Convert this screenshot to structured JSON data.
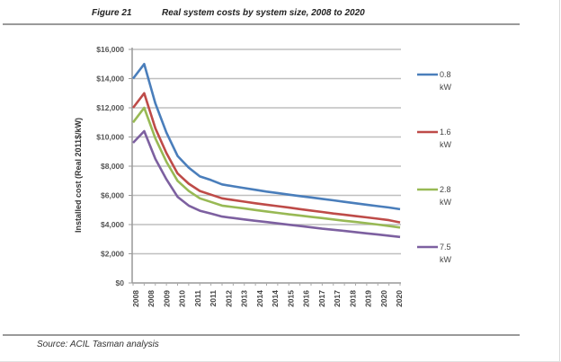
{
  "figure": {
    "number": "Figure 21",
    "title": "Real system costs by system size, 2008 to 2020",
    "source": "Source: ACIL Tasman analysis"
  },
  "chart_data": {
    "type": "line",
    "title": "Real system costs by system size, 2008 to 2020",
    "xlabel": "",
    "ylabel": "Installed cost (Real 2011$/kW)",
    "ylim": [
      0,
      16000
    ],
    "yticks": [
      0,
      2000,
      4000,
      6000,
      8000,
      10000,
      12000,
      14000,
      16000
    ],
    "ytick_labels": [
      "$0",
      "$2,000",
      "$4,000",
      "$6,000",
      "$8,000",
      "$10,000",
      "$12,000",
      "$14,000",
      "$16,000"
    ],
    "xtick_labels": [
      "2008",
      "2008",
      "2009",
      "2010",
      "2011",
      "2011",
      "2012",
      "2013",
      "2014",
      "2014",
      "2015",
      "2016",
      "2017",
      "2017",
      "2018",
      "2019",
      "2020",
      "2020"
    ],
    "grid": true,
    "legend_position": "right",
    "x": [
      2008.0,
      2008.5,
      2009.0,
      2009.5,
      2010.0,
      2010.5,
      2011.0,
      2011.5,
      2012.0,
      2012.5,
      2013.0,
      2013.5,
      2014.0,
      2014.5,
      2015.0,
      2015.5,
      2016.0,
      2016.5,
      2017.0,
      2017.5,
      2018.0,
      2018.5,
      2019.0,
      2019.5,
      2020.0
    ],
    "series": [
      {
        "name": "0.8 kW",
        "color": "#4a7ebb",
        "values": [
          14000,
          15000,
          12300,
          10300,
          8700,
          7900,
          7300,
          7050,
          6750,
          6620,
          6500,
          6380,
          6260,
          6160,
          6050,
          5950,
          5860,
          5760,
          5660,
          5560,
          5460,
          5360,
          5260,
          5170,
          5050
        ]
      },
      {
        "name": "1.6 kW",
        "color": "#be4b48",
        "values": [
          12000,
          13000,
          10600,
          8900,
          7500,
          6800,
          6300,
          6050,
          5800,
          5680,
          5570,
          5460,
          5360,
          5260,
          5160,
          5060,
          4960,
          4860,
          4760,
          4670,
          4580,
          4490,
          4400,
          4300,
          4150
        ]
      },
      {
        "name": "2.8 kW",
        "color": "#98b954",
        "values": [
          11000,
          12000,
          9900,
          8300,
          7000,
          6300,
          5800,
          5550,
          5300,
          5200,
          5100,
          5000,
          4900,
          4800,
          4700,
          4620,
          4530,
          4440,
          4350,
          4260,
          4180,
          4090,
          4000,
          3900,
          3800
        ]
      },
      {
        "name": "7.5 kW",
        "color": "#7d60a0",
        "values": [
          9600,
          10400,
          8500,
          7100,
          5900,
          5300,
          4950,
          4750,
          4550,
          4450,
          4350,
          4260,
          4170,
          4080,
          3990,
          3900,
          3810,
          3720,
          3640,
          3560,
          3480,
          3400,
          3320,
          3240,
          3150
        ]
      }
    ]
  }
}
